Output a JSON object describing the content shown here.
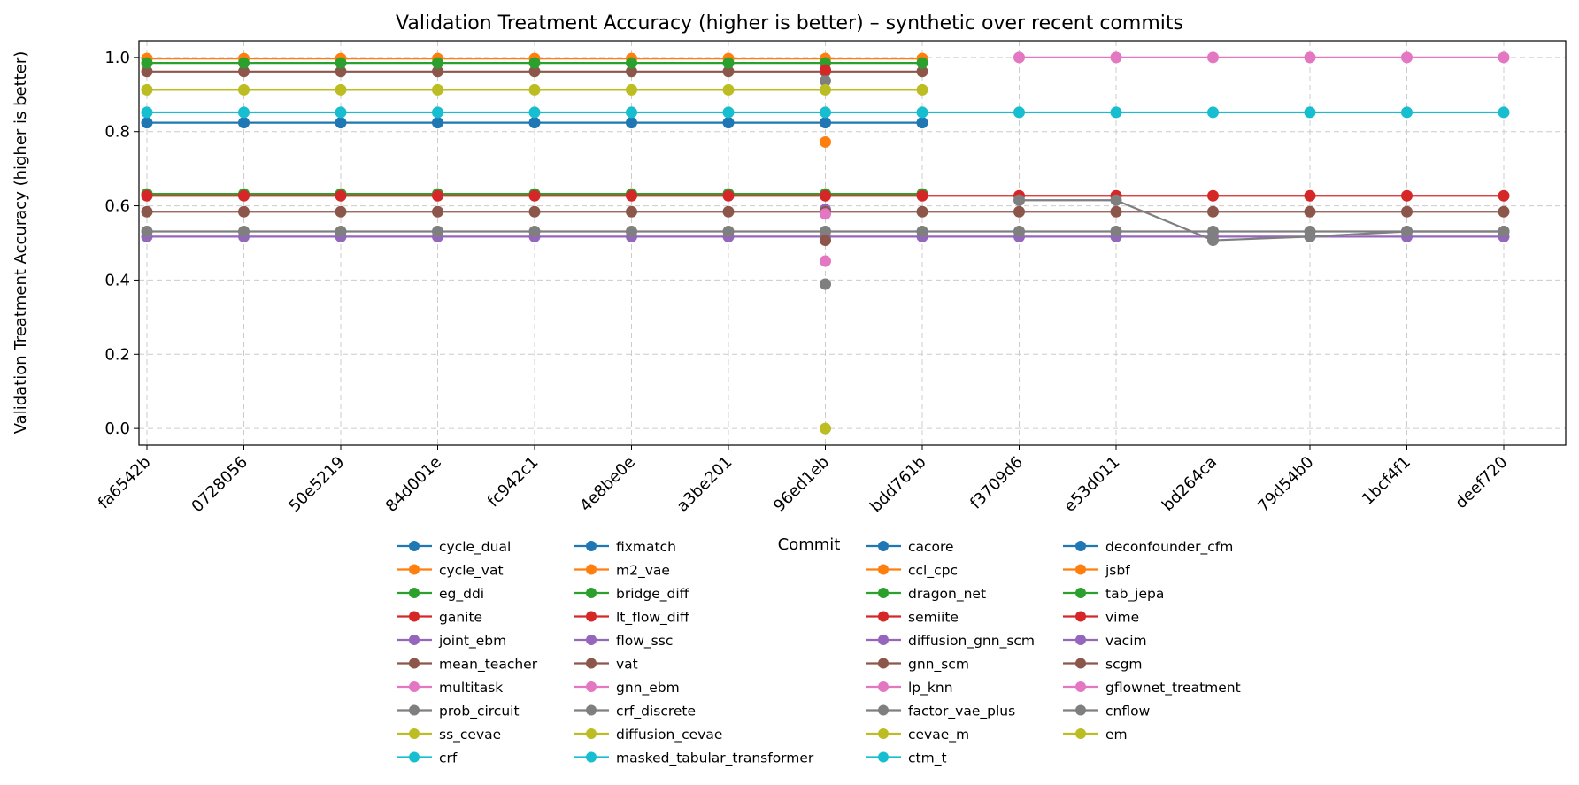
{
  "chart_data": {
    "type": "line",
    "title": "Validation Treatment Accuracy (higher is better) – synthetic over recent commits",
    "xlabel": "Commit",
    "ylabel": "Validation Treatment Accuracy (higher is better)",
    "ylim": [
      -0.045,
      1.045
    ],
    "yticks": [
      "0.0",
      "0.2",
      "0.4",
      "0.6",
      "0.8",
      "1.0"
    ],
    "grid": true,
    "legend_placement": "below plot, 4 columns",
    "categories": [
      "fa6542b",
      "0728056",
      "50e5219",
      "84d001e",
      "fc942c1",
      "4e8be0e",
      "a3be201",
      "96ed1eb",
      "bdd761b",
      "f3709d6",
      "e53d011",
      "bd264ca",
      "79d54b0",
      "1bcf4f1",
      "deef720"
    ],
    "series": [
      {
        "name": "cycle_dual",
        "color": "#1f77b4",
        "values": [
          0.824,
          0.824,
          0.824,
          0.824,
          0.824,
          0.824,
          0.824,
          0.824,
          0.824,
          null,
          null,
          null,
          null,
          null,
          null
        ]
      },
      {
        "name": "cycle_vat",
        "color": "#ff7f0e",
        "values": [
          0.997,
          0.997,
          0.997,
          0.997,
          0.997,
          0.997,
          0.997,
          0.997,
          0.997,
          null,
          null,
          null,
          null,
          null,
          null
        ]
      },
      {
        "name": "eg_ddi",
        "color": "#2ca02c",
        "values": [
          0.632,
          0.632,
          0.632,
          0.632,
          0.632,
          0.632,
          0.632,
          0.632,
          0.632,
          null,
          null,
          null,
          null,
          null,
          null
        ]
      },
      {
        "name": "ganite",
        "color": "#d62728",
        "values": [
          0.627,
          0.627,
          0.627,
          0.627,
          0.627,
          0.627,
          0.627,
          0.627,
          0.627,
          0.627,
          0.627,
          0.627,
          0.627,
          0.627,
          0.627
        ]
      },
      {
        "name": "joint_ebm",
        "color": "#9467bd",
        "values": [
          0.517,
          0.517,
          0.517,
          0.517,
          0.517,
          0.517,
          0.517,
          0.517,
          0.517,
          0.517,
          0.517,
          0.517,
          0.517,
          0.517,
          0.517
        ]
      },
      {
        "name": "mean_teacher",
        "color": "#8c564b",
        "values": [
          0.962,
          0.962,
          0.962,
          0.962,
          0.962,
          0.962,
          0.962,
          0.962,
          0.962,
          null,
          null,
          null,
          null,
          null,
          null
        ]
      },
      {
        "name": "multitask",
        "color": "#e377c2",
        "values": [
          null,
          null,
          null,
          null,
          null,
          null,
          null,
          null,
          null,
          1.0,
          1.0,
          1.0,
          1.0,
          1.0,
          1.0
        ]
      },
      {
        "name": "prob_circuit",
        "color": "#7f7f7f",
        "values": [
          null,
          null,
          null,
          null,
          null,
          null,
          null,
          0.937,
          null,
          null,
          null,
          null,
          null,
          null,
          null
        ]
      },
      {
        "name": "ss_cevae",
        "color": "#bcbd22",
        "values": [
          0.913,
          0.913,
          0.913,
          0.913,
          0.913,
          0.913,
          0.913,
          0.913,
          0.913,
          null,
          null,
          null,
          null,
          null,
          null
        ]
      },
      {
        "name": "crf",
        "color": "#17becf",
        "values": [
          0.852,
          0.852,
          0.852,
          0.852,
          0.852,
          0.852,
          0.852,
          0.852,
          0.852,
          0.852,
          0.852,
          0.852,
          0.852,
          0.852,
          0.852
        ]
      },
      {
        "name": "fixmatch",
        "color": "#1f77b4",
        "values": [
          null,
          null,
          null,
          null,
          null,
          null,
          null,
          null,
          null,
          null,
          null,
          null,
          null,
          null,
          null
        ]
      },
      {
        "name": "m2_vae",
        "color": "#ff7f0e",
        "values": [
          null,
          null,
          null,
          null,
          null,
          null,
          null,
          0.772,
          null,
          null,
          null,
          null,
          null,
          null,
          null
        ]
      },
      {
        "name": "bridge_diff",
        "color": "#2ca02c",
        "values": [
          0.985,
          0.985,
          0.985,
          0.985,
          0.985,
          0.985,
          0.985,
          0.985,
          0.985,
          null,
          null,
          null,
          null,
          null,
          null
        ]
      },
      {
        "name": "lt_flow_diff",
        "color": "#d62728",
        "values": [
          null,
          null,
          null,
          null,
          null,
          null,
          null,
          0.966,
          null,
          null,
          null,
          null,
          null,
          null,
          null
        ]
      },
      {
        "name": "flow_ssc",
        "color": "#9467bd",
        "values": [
          null,
          null,
          null,
          null,
          null,
          null,
          null,
          0.59,
          null,
          null,
          null,
          null,
          null,
          null,
          null
        ]
      },
      {
        "name": "vat",
        "color": "#8c564b",
        "values": [
          0.584,
          0.584,
          0.584,
          0.584,
          0.584,
          0.584,
          0.584,
          0.584,
          0.584,
          0.584,
          0.584,
          0.584,
          0.584,
          0.584,
          0.584
        ]
      },
      {
        "name": "gnn_ebm",
        "color": "#e377c2",
        "values": [
          null,
          null,
          null,
          null,
          null,
          null,
          null,
          0.451,
          null,
          null,
          null,
          null,
          null,
          null,
          null
        ]
      },
      {
        "name": "crf_discrete",
        "color": "#7f7f7f",
        "values": [
          0.531,
          0.531,
          0.531,
          0.531,
          0.531,
          0.531,
          0.531,
          0.531,
          0.531,
          0.531,
          0.531,
          0.531,
          0.531,
          0.531,
          0.531
        ]
      },
      {
        "name": "diffusion_cevae",
        "color": "#bcbd22",
        "values": [
          null,
          null,
          null,
          null,
          null,
          null,
          null,
          0.0,
          null,
          null,
          null,
          null,
          null,
          null,
          null
        ]
      },
      {
        "name": "masked_tabular_transformer",
        "color": "#17becf",
        "values": [
          null,
          null,
          null,
          null,
          null,
          null,
          null,
          null,
          null,
          null,
          null,
          null,
          null,
          null,
          null
        ]
      },
      {
        "name": "cacore",
        "color": "#1f77b4",
        "values": [
          null,
          null,
          null,
          null,
          null,
          null,
          null,
          null,
          null,
          null,
          null,
          null,
          null,
          null,
          null
        ]
      },
      {
        "name": "ccl_cpc",
        "color": "#ff7f0e",
        "values": [
          null,
          null,
          null,
          null,
          null,
          null,
          null,
          null,
          null,
          null,
          null,
          null,
          null,
          null,
          null
        ]
      },
      {
        "name": "dragon_net",
        "color": "#2ca02c",
        "values": [
          null,
          null,
          null,
          null,
          null,
          null,
          null,
          null,
          null,
          null,
          null,
          null,
          null,
          null,
          null
        ]
      },
      {
        "name": "semiite",
        "color": "#d62728",
        "values": [
          null,
          null,
          null,
          null,
          null,
          null,
          null,
          null,
          null,
          null,
          null,
          null,
          null,
          null,
          null
        ]
      },
      {
        "name": "diffusion_gnn_scm",
        "color": "#9467bd",
        "values": [
          null,
          null,
          null,
          null,
          null,
          null,
          null,
          null,
          null,
          null,
          null,
          null,
          null,
          null,
          null
        ]
      },
      {
        "name": "gnn_scm",
        "color": "#8c564b",
        "values": [
          null,
          null,
          null,
          null,
          null,
          null,
          null,
          0.507,
          null,
          null,
          null,
          null,
          null,
          null,
          null
        ]
      },
      {
        "name": "lp_knn",
        "color": "#e377c2",
        "values": [
          null,
          null,
          null,
          null,
          null,
          null,
          null,
          0.578,
          null,
          null,
          null,
          null,
          null,
          null,
          null
        ]
      },
      {
        "name": "factor_vae_plus",
        "color": "#7f7f7f",
        "values": [
          null,
          null,
          null,
          null,
          null,
          null,
          null,
          0.389,
          null,
          null,
          null,
          null,
          null,
          null,
          null
        ]
      },
      {
        "name": "cevae_m",
        "color": "#bcbd22",
        "values": [
          null,
          null,
          null,
          null,
          null,
          null,
          null,
          null,
          null,
          null,
          null,
          null,
          null,
          null,
          null
        ]
      },
      {
        "name": "ctm_t",
        "color": "#17becf",
        "values": [
          null,
          null,
          null,
          null,
          null,
          null,
          null,
          null,
          null,
          null,
          null,
          null,
          null,
          null,
          null
        ]
      },
      {
        "name": "deconfounder_cfm",
        "color": "#1f77b4",
        "values": [
          null,
          null,
          null,
          null,
          null,
          null,
          null,
          null,
          null,
          null,
          null,
          null,
          null,
          null,
          null
        ]
      },
      {
        "name": "jsbf",
        "color": "#ff7f0e",
        "values": [
          null,
          null,
          null,
          null,
          null,
          null,
          null,
          null,
          null,
          null,
          null,
          null,
          null,
          null,
          null
        ]
      },
      {
        "name": "tab_jepa",
        "color": "#2ca02c",
        "values": [
          null,
          null,
          null,
          null,
          null,
          null,
          null,
          null,
          null,
          null,
          null,
          null,
          null,
          null,
          null
        ]
      },
      {
        "name": "vime",
        "color": "#d62728",
        "values": [
          null,
          null,
          null,
          null,
          null,
          null,
          null,
          null,
          null,
          null,
          null,
          null,
          null,
          null,
          null
        ]
      },
      {
        "name": "vacim",
        "color": "#9467bd",
        "values": [
          null,
          null,
          null,
          null,
          null,
          null,
          null,
          null,
          null,
          null,
          null,
          null,
          null,
          null,
          null
        ]
      },
      {
        "name": "scgm",
        "color": "#8c564b",
        "values": [
          null,
          null,
          null,
          null,
          null,
          null,
          null,
          null,
          null,
          null,
          null,
          null,
          null,
          null,
          null
        ]
      },
      {
        "name": "gflownet_treatment",
        "color": "#e377c2",
        "values": [
          null,
          null,
          null,
          null,
          null,
          null,
          null,
          null,
          null,
          null,
          null,
          null,
          null,
          null,
          null
        ]
      },
      {
        "name": "cnflow",
        "color": "#7f7f7f",
        "values": [
          null,
          null,
          null,
          null,
          null,
          null,
          null,
          null,
          null,
          0.615,
          0.615,
          0.507,
          0.517,
          0.531,
          0.531
        ]
      },
      {
        "name": "em",
        "color": "#bcbd22",
        "values": [
          null,
          null,
          null,
          null,
          null,
          null,
          null,
          null,
          null,
          null,
          null,
          null,
          null,
          null,
          null
        ]
      }
    ]
  }
}
